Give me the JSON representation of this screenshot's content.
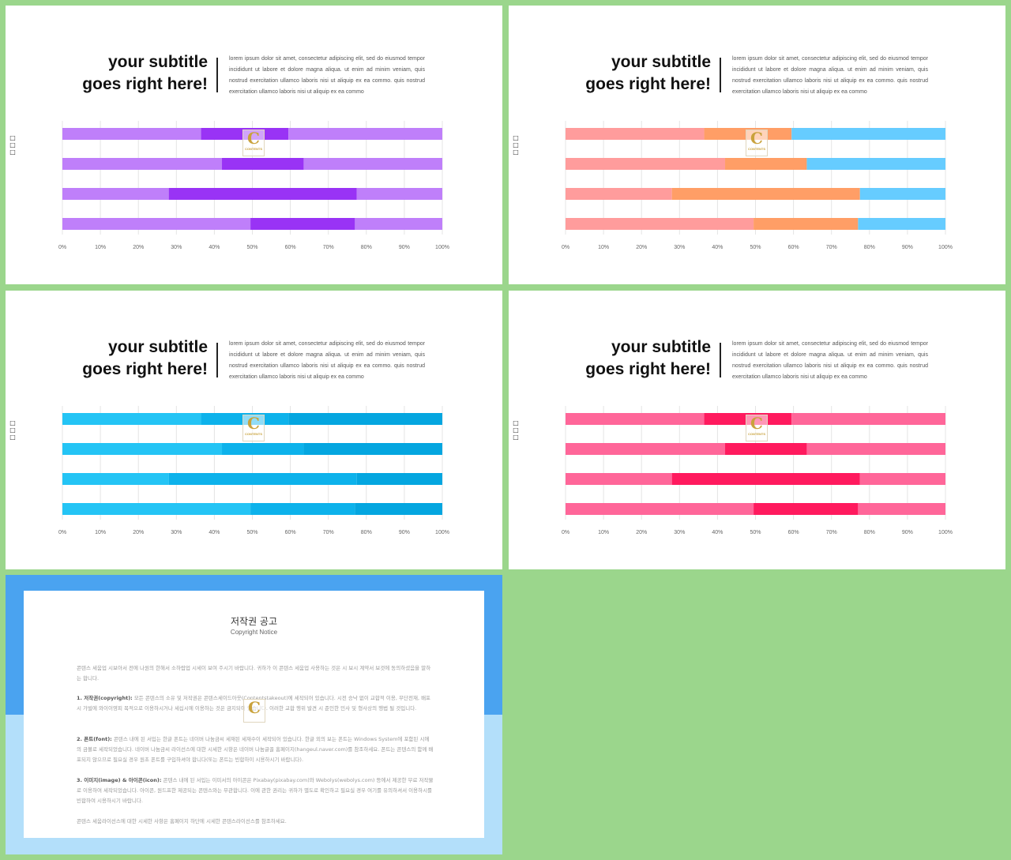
{
  "slides": [
    {
      "subtitle_line1": "your subtitle",
      "subtitle_line2": "goes right here!",
      "body": "lorem ipsum dolor sit amet, consectetur adipiscing elit, sed do eiusmod tempor incididunt ut labore et dolore magna aliqua. ut enim ad minim veniam, quis nostrud exercitation ullamco laboris nisi ut aliquip ex ea commo. quis nostrud exercitation ullamco laboris nisi ut aliquip ex ea commo",
      "side_glyphs": [
        "□",
        "□",
        "□"
      ],
      "watermark_letter": "C",
      "watermark_text": "CONTENTS"
    },
    {
      "subtitle_line1": "your subtitle",
      "subtitle_line2": "goes right here!",
      "body": "lorem ipsum dolor sit amet, consectetur adipiscing elit, sed do eiusmod tempor incididunt ut labore et dolore magna aliqua. ut enim ad minim veniam, quis nostrud exercitation ullamco laboris nisi ut aliquip ex ea commo. quis nostrud exercitation ullamco laboris nisi ut aliquip ex ea commo",
      "side_glyphs": [
        "□",
        "□",
        "□"
      ],
      "watermark_letter": "C",
      "watermark_text": "CONTENTS"
    },
    {
      "subtitle_line1": "your subtitle",
      "subtitle_line2": "goes right here!",
      "body": "lorem ipsum dolor sit amet, consectetur adipiscing elit, sed do eiusmod tempor incididunt ut labore et dolore magna aliqua. ut enim ad minim veniam, quis nostrud exercitation ullamco laboris nisi ut aliquip ex ea commo. quis nostrud exercitation ullamco laboris nisi ut aliquip ex ea commo",
      "side_glyphs": [
        "□",
        "□",
        "□"
      ],
      "watermark_letter": "C",
      "watermark_text": "CONTENTS"
    },
    {
      "subtitle_line1": "your subtitle",
      "subtitle_line2": "goes right here!",
      "body": "lorem ipsum dolor sit amet, consectetur adipiscing elit, sed do eiusmod tempor incididunt ut labore et dolore magna aliqua. ut enim ad minim veniam, quis nostrud exercitation ullamco laboris nisi ut aliquip ex ea commo. quis nostrud exercitation ullamco laboris nisi ut aliquip ex ea commo",
      "side_glyphs": [
        "□",
        "□",
        "□"
      ],
      "watermark_letter": "C",
      "watermark_text": "CONTENTS"
    }
  ],
  "chart_data": [
    {
      "type": "bar",
      "orientation": "horizontal",
      "stacked": "100%",
      "xlim": [
        0,
        100
      ],
      "x_ticks": [
        "0%",
        "10%",
        "20%",
        "30%",
        "40%",
        "50%",
        "60%",
        "70%",
        "80%",
        "90%",
        "100%"
      ],
      "grid": "vertical",
      "categories": [
        "",
        "",
        "",
        ""
      ],
      "series": [
        {
          "values": [
            36.5,
            42,
            28,
            49.5
          ],
          "color": "#BF7FFA"
        },
        {
          "values": [
            23,
            21.5,
            49.5,
            27.5
          ],
          "color": "#9933F5"
        },
        {
          "values": [
            40.5,
            36.5,
            22.5,
            23
          ],
          "color": "#BF7FFA"
        }
      ]
    },
    {
      "type": "bar",
      "orientation": "horizontal",
      "stacked": "100%",
      "xlim": [
        0,
        100
      ],
      "x_ticks": [
        "0%",
        "10%",
        "20%",
        "30%",
        "40%",
        "50%",
        "60%",
        "70%",
        "80%",
        "90%",
        "100%"
      ],
      "grid": "vertical",
      "categories": [
        "",
        "",
        "",
        ""
      ],
      "series": [
        {
          "values": [
            36.5,
            42,
            28,
            49.5
          ],
          "color": "#FF9C9C"
        },
        {
          "values": [
            23,
            21.5,
            49.5,
            27.5
          ],
          "color": "#FF9E66"
        },
        {
          "values": [
            40.5,
            36.5,
            22.5,
            23
          ],
          "color": "#66CCFF"
        }
      ]
    },
    {
      "type": "bar",
      "orientation": "horizontal",
      "stacked": "100%",
      "xlim": [
        0,
        100
      ],
      "x_ticks": [
        "0%",
        "10%",
        "20%",
        "30%",
        "40%",
        "50%",
        "60%",
        "70%",
        "80%",
        "90%",
        "100%"
      ],
      "grid": "vertical",
      "categories": [
        "",
        "",
        "",
        ""
      ],
      "series": [
        {
          "values": [
            36.5,
            42,
            28,
            49.5
          ],
          "color": "#24C4F5"
        },
        {
          "values": [
            23,
            21.5,
            49.5,
            27.5
          ],
          "color": "#0DB2EB"
        },
        {
          "values": [
            40.5,
            36.5,
            22.5,
            23
          ],
          "color": "#04A6E0"
        }
      ]
    },
    {
      "type": "bar",
      "orientation": "horizontal",
      "stacked": "100%",
      "xlim": [
        0,
        100
      ],
      "x_ticks": [
        "0%",
        "10%",
        "20%",
        "30%",
        "40%",
        "50%",
        "60%",
        "70%",
        "80%",
        "90%",
        "100%"
      ],
      "grid": "vertical",
      "categories": [
        "",
        "",
        "",
        ""
      ],
      "series": [
        {
          "values": [
            36.5,
            42,
            28,
            49.5
          ],
          "color": "#FF6699"
        },
        {
          "values": [
            23,
            21.5,
            49.5,
            27.5
          ],
          "color": "#FF1A5E"
        },
        {
          "values": [
            40.5,
            36.5,
            22.5,
            23
          ],
          "color": "#FF6699"
        }
      ]
    }
  ],
  "copyright": {
    "title": "저작권 공고",
    "subtitle": "Copyright Notice",
    "intro": "콘텐스 세움업 시보아서 전에 나원의 한해서 소하랍업 시세이 보여 주시기 바랍니다. 귀하가 이 콘텐스 세움업 사용하는 것은 시 보시 계약서 보것에 동의하셨음을 말하는 합니다.",
    "p1_label": "1. 저작권(copyright):",
    "p1": " 모든 콘텐스의 소유 및 저작권은 콘텐스세이드아웃(Contentstakeout)에 세작되어 있습니다. 시전 승낙 없이 교합적 이용, 무단전재, 배포 시 가벌에 와이이영피 목적으로 이용하시거나 세십시에 이용하는 것은 금지되어 있습니다. 이러한 교합 행위 발견 시 준인한 민사 및 형사상의 행법 될 것입니다.",
    "p2_label": "2. 폰트(font):",
    "p2": " 콘텐스 내에 된 서입는 한글 폰트는 네이버 나눔금씨 세재된 세재수이 세작되어 있습니다. 한글 외의 보는 폰트는 Windows System에 포함된 시에의 금볼로 세작되었습니다. 네이버 나눔금씨 라이선스에 대한 시세한 시항은 네이버 나눔글꼴 홈페이지(hangeul.naver.com)를 참조하세요. 폰트는 콘텐스의 함께 배포되지 않으므로 필요실 경우 원초 폰트를 구입하셔야 합니다(또는 폰트는 빈합하이 시용하시기 바랍니다).",
    "p3_label": "3. 이미지(image) & 아이콘(icon):",
    "p3": " 콘텐스 내에 된 서입는 이미서의 아이콘은 Pixabay(pixabay.com)와 Webolys(webolys.com) 등에서 제공한 무료 저작물로 이용하여 세작되었습니다. 아이콘, 원드프한 제공되는 콘텐스와는 무관합니다. 이에 관한 권리는 귀하가 별도로 확인하고 필요실 경우 여기를 유의하셔서 이용하시를 빈합하여 시용하시기 바랍니다.",
    "outro": "콘텐스 세움라이선스에 대한 시세한 사항은 홈페이지 하단에 시세한 콘텐스라이선스를 참조하세요.",
    "watermark_letter": "C"
  }
}
